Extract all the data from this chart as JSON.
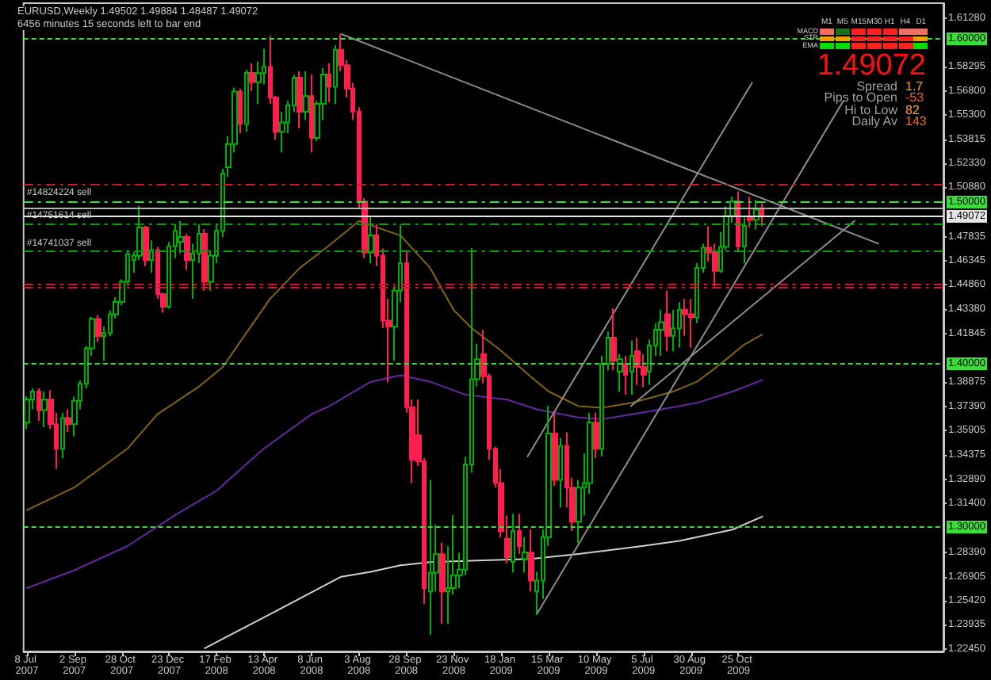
{
  "chart_data": {
    "type": "candlestick",
    "title": "EURUSD,Weekly 1.49502 1.49884 1.48487 1.49072",
    "subtitle": "6456 minutes 15 seconds left to bar end",
    "x": [
      "2007-07-08",
      "2007-07-15",
      "2007-07-22",
      "2007-07-29",
      "2007-08-05",
      "2007-08-12",
      "2007-08-19",
      "2007-08-26",
      "2007-09-02",
      "2007-09-09",
      "2007-09-16",
      "2007-09-23",
      "2007-09-30",
      "2007-10-07",
      "2007-10-14",
      "2007-10-21",
      "2007-10-28",
      "2007-11-04",
      "2007-11-11",
      "2007-11-18",
      "2007-11-25",
      "2007-12-02",
      "2007-12-09",
      "2007-12-16",
      "2007-12-23",
      "2007-12-30",
      "2008-01-06",
      "2008-01-13",
      "2008-01-20",
      "2008-01-27",
      "2008-02-03",
      "2008-02-10",
      "2008-02-17",
      "2008-02-24",
      "2008-03-02",
      "2008-03-09",
      "2008-03-16",
      "2008-03-23",
      "2008-03-30",
      "2008-04-06",
      "2008-04-13",
      "2008-04-20",
      "2008-04-27",
      "2008-05-04",
      "2008-05-11",
      "2008-05-18",
      "2008-05-25",
      "2008-06-01",
      "2008-06-08",
      "2008-06-15",
      "2008-06-22",
      "2008-06-29",
      "2008-07-06",
      "2008-07-13",
      "2008-07-20",
      "2008-07-27",
      "2008-08-03",
      "2008-08-10",
      "2008-08-17",
      "2008-08-24",
      "2008-08-31",
      "2008-09-07",
      "2008-09-14",
      "2008-09-21",
      "2008-09-28",
      "2008-10-05",
      "2008-10-12",
      "2008-10-19",
      "2008-10-26",
      "2008-11-02",
      "2008-11-09",
      "2008-11-16",
      "2008-11-23",
      "2008-11-30",
      "2008-12-07",
      "2008-12-14",
      "2008-12-21",
      "2008-12-28",
      "2009-01-04",
      "2009-01-11",
      "2009-01-18",
      "2009-01-25",
      "2009-02-01",
      "2009-02-08",
      "2009-02-15",
      "2009-02-22",
      "2009-03-01",
      "2009-03-08",
      "2009-03-15",
      "2009-03-22",
      "2009-03-29",
      "2009-04-05",
      "2009-04-12",
      "2009-04-19",
      "2009-04-26",
      "2009-05-03",
      "2009-05-10",
      "2009-05-17",
      "2009-05-24",
      "2009-05-31",
      "2009-06-07",
      "2009-06-14",
      "2009-06-21",
      "2009-06-28",
      "2009-07-05",
      "2009-07-12",
      "2009-07-19",
      "2009-07-26",
      "2009-08-02",
      "2009-08-09",
      "2009-08-16",
      "2009-08-23",
      "2009-08-30",
      "2009-09-06",
      "2009-09-13",
      "2009-09-20",
      "2009-09-27",
      "2009-10-04",
      "2009-10-11",
      "2009-10-18",
      "2009-10-25",
      "2009-11-01",
      "2009-11-08",
      "2009-11-15",
      "2009-11-22"
    ],
    "ohlc": [
      [
        1.3638,
        1.38,
        1.36,
        1.3781
      ],
      [
        1.3781,
        1.385,
        1.372,
        1.383
      ],
      [
        1.383,
        1.385,
        1.365,
        1.3715
      ],
      [
        1.3715,
        1.383,
        1.361,
        1.3781
      ],
      [
        1.3781,
        1.3838,
        1.36,
        1.3629
      ],
      [
        1.3629,
        1.37,
        1.3353,
        1.3477
      ],
      [
        1.3477,
        1.37,
        1.342,
        1.3667
      ],
      [
        1.3667,
        1.372,
        1.358,
        1.3629
      ],
      [
        1.3629,
        1.38,
        1.3553,
        1.3772
      ],
      [
        1.3772,
        1.39,
        1.372,
        1.3877
      ],
      [
        1.3877,
        1.411,
        1.385,
        1.4096
      ],
      [
        1.4096,
        1.429,
        1.405,
        1.4276
      ],
      [
        1.4276,
        1.43,
        1.4134,
        1.4171
      ],
      [
        1.4171,
        1.423,
        1.4019,
        1.419
      ],
      [
        1.419,
        1.433,
        1.417,
        1.4305
      ],
      [
        1.4305,
        1.441,
        1.428,
        1.4381
      ],
      [
        1.4381,
        1.452,
        1.436,
        1.4505
      ],
      [
        1.4505,
        1.47,
        1.448,
        1.4677
      ],
      [
        1.464,
        1.469,
        1.456,
        1.4667
      ],
      [
        1.4667,
        1.4972,
        1.464,
        1.4839
      ],
      [
        1.4839,
        1.485,
        1.46,
        1.4638
      ],
      [
        1.4638,
        1.476,
        1.456,
        1.47
      ],
      [
        1.47,
        1.472,
        1.44,
        1.4429
      ],
      [
        1.4429,
        1.444,
        1.4315,
        1.4352
      ],
      [
        1.4352,
        1.475,
        1.434,
        1.4724
      ],
      [
        1.4724,
        1.486,
        1.465,
        1.4819
      ],
      [
        1.475,
        1.488,
        1.468,
        1.4781
      ],
      [
        1.4781,
        1.48,
        1.458,
        1.464
      ],
      [
        1.464,
        1.474,
        1.44,
        1.468
      ],
      [
        1.468,
        1.486,
        1.462,
        1.48
      ],
      [
        1.48,
        1.483,
        1.445,
        1.4505
      ],
      [
        1.4505,
        1.47,
        1.445,
        1.4667
      ],
      [
        1.4667,
        1.486,
        1.462,
        1.4819
      ],
      [
        1.4819,
        1.52,
        1.478,
        1.5171
      ],
      [
        1.521,
        1.54,
        1.515,
        1.5353
      ],
      [
        1.5353,
        1.57,
        1.53,
        1.5676
      ],
      [
        1.5676,
        1.5695,
        1.542,
        1.5476
      ],
      [
        1.5476,
        1.581,
        1.5429,
        1.5791
      ],
      [
        1.5791,
        1.585,
        1.568,
        1.5734
      ],
      [
        1.5734,
        1.586,
        1.56,
        1.579
      ],
      [
        1.579,
        1.594,
        1.572,
        1.5829
      ],
      [
        1.5829,
        1.6019,
        1.56,
        1.5638
      ],
      [
        1.5638,
        1.565,
        1.538,
        1.5429
      ],
      [
        1.5429,
        1.555,
        1.53,
        1.5486
      ],
      [
        1.5486,
        1.562,
        1.542,
        1.5591
      ],
      [
        1.5591,
        1.578,
        1.555,
        1.5762
      ],
      [
        1.5762,
        1.58,
        1.545,
        1.5552
      ],
      [
        1.5552,
        1.58,
        1.55,
        1.5648
      ],
      [
        1.5648,
        1.5781,
        1.53,
        1.5391
      ],
      [
        1.5391,
        1.562,
        1.537,
        1.56
      ],
      [
        1.56,
        1.582,
        1.55,
        1.5781
      ],
      [
        1.5781,
        1.585,
        1.561,
        1.5705
      ],
      [
        1.5705,
        1.596,
        1.56,
        1.5933
      ],
      [
        1.5933,
        1.6029,
        1.58,
        1.5838
      ],
      [
        1.5838,
        1.587,
        1.564,
        1.5695
      ],
      [
        1.5695,
        1.573,
        1.55,
        1.5552
      ],
      [
        1.5552,
        1.558,
        1.496,
        1.5
      ],
      [
        1.5,
        1.502,
        1.465,
        1.4686
      ],
      [
        1.4686,
        1.4905,
        1.4619,
        1.4791
      ],
      [
        1.4791,
        1.486,
        1.46,
        1.4667
      ],
      [
        1.4667,
        1.471,
        1.422,
        1.4267
      ],
      [
        1.4267,
        1.44,
        1.3886,
        1.423
      ],
      [
        1.423,
        1.448,
        1.4019,
        1.445
      ],
      [
        1.445,
        1.4858,
        1.438,
        1.462
      ],
      [
        1.462,
        1.47,
        1.37,
        1.3733
      ],
      [
        1.3733,
        1.3781,
        1.3267,
        1.341
      ],
      [
        1.356,
        1.3781,
        1.337,
        1.34
      ],
      [
        1.34,
        1.342,
        1.2524,
        1.2619
      ],
      [
        1.26,
        1.3286,
        1.2334,
        1.2715
      ],
      [
        1.2715,
        1.301,
        1.26,
        1.2829
      ],
      [
        1.2829,
        1.29,
        1.24,
        1.26
      ],
      [
        1.26,
        1.2877,
        1.24,
        1.262
      ],
      [
        1.262,
        1.307,
        1.258,
        1.27
      ],
      [
        1.27,
        1.2838,
        1.262,
        1.2734
      ],
      [
        1.2734,
        1.3429,
        1.27,
        1.3381
      ],
      [
        1.3381,
        1.4714,
        1.333,
        1.3905
      ],
      [
        1.3905,
        1.4124,
        1.386,
        1.4029
      ],
      [
        1.406,
        1.421,
        1.388,
        1.3924
      ],
      [
        1.3924,
        1.394,
        1.341,
        1.3477
      ],
      [
        1.3477,
        1.349,
        1.3238,
        1.3267
      ],
      [
        1.3267,
        1.3353,
        1.2934,
        1.2972
      ],
      [
        1.2924,
        1.3067,
        1.277,
        1.281
      ],
      [
        1.2781,
        1.3077,
        1.2715,
        1.2972
      ],
      [
        1.2972,
        1.3077,
        1.283,
        1.2877
      ],
      [
        1.28,
        1.2934,
        1.2715,
        1.284
      ],
      [
        1.2838,
        1.2981,
        1.26,
        1.2667
      ],
      [
        1.26,
        1.272,
        1.2457,
        1.2667
      ],
      [
        1.2667,
        1.2981,
        1.2553,
        1.2934
      ],
      [
        1.2934,
        1.3743,
        1.288,
        1.3571
      ],
      [
        1.3571,
        1.3695,
        1.325,
        1.3286
      ],
      [
        1.3286,
        1.3543,
        1.3115,
        1.3496
      ],
      [
        1.3496,
        1.358,
        1.3115,
        1.3238
      ],
      [
        1.3238,
        1.33,
        1.2972,
        1.3029
      ],
      [
        1.3029,
        1.3286,
        1.29,
        1.3238
      ],
      [
        1.3238,
        1.3448,
        1.3067,
        1.3267
      ],
      [
        1.3267,
        1.37,
        1.32,
        1.3638
      ],
      [
        1.3638,
        1.37,
        1.342,
        1.3477
      ],
      [
        1.3477,
        1.405,
        1.343,
        1.4
      ],
      [
        1.4,
        1.42,
        1.396,
        1.4162
      ],
      [
        1.4162,
        1.4343,
        1.396,
        1.4019
      ],
      [
        1.3953,
        1.406,
        1.3829,
        1.4029
      ],
      [
        1.4,
        1.405,
        1.381,
        1.3933
      ],
      [
        1.3953,
        1.4143,
        1.381,
        1.4048
      ],
      [
        1.4077,
        1.416,
        1.387,
        1.3981
      ],
      [
        1.3981,
        1.406,
        1.3857,
        1.3933
      ],
      [
        1.3953,
        1.415,
        1.387,
        1.4114
      ],
      [
        1.4114,
        1.425,
        1.405,
        1.421
      ],
      [
        1.421,
        1.4334,
        1.405,
        1.4257
      ],
      [
        1.4305,
        1.445,
        1.4077,
        1.4172
      ],
      [
        1.4172,
        1.4334,
        1.4077,
        1.4219
      ],
      [
        1.4219,
        1.438,
        1.41,
        1.4334
      ],
      [
        1.4334,
        1.44,
        1.4172,
        1.4305
      ],
      [
        1.4305,
        1.44,
        1.41,
        1.4286
      ],
      [
        1.4286,
        1.462,
        1.425,
        1.4591
      ],
      [
        1.4591,
        1.474,
        1.456,
        1.4715
      ],
      [
        1.4715,
        1.4848,
        1.463,
        1.4686
      ],
      [
        1.4686,
        1.474,
        1.4476,
        1.4572
      ],
      [
        1.4572,
        1.481,
        1.456,
        1.472
      ],
      [
        1.472,
        1.497,
        1.47,
        1.491
      ],
      [
        1.491,
        1.503,
        1.487,
        1.5
      ],
      [
        1.5,
        1.5062,
        1.469,
        1.4724
      ],
      [
        1.4724,
        1.49,
        1.4619,
        1.4848
      ],
      [
        1.49,
        1.5029,
        1.484,
        1.4886
      ],
      [
        1.4886,
        1.501,
        1.4829,
        1.495
      ],
      [
        1.49502,
        1.49884,
        1.48487,
        1.49072
      ]
    ],
    "xlim": [
      "2007-07-04",
      "2010-06-24"
    ],
    "xticks": [
      {
        "value": "2007-07-08",
        "label": "8 Jul 2007"
      },
      {
        "value": "2007-09-02",
        "label": "2 Sep 2007"
      },
      {
        "value": "2007-10-28",
        "label": "28 Oct 2007"
      },
      {
        "value": "2007-12-23",
        "label": "23 Dec 2007"
      },
      {
        "value": "2008-02-17",
        "label": "17 Feb 2008"
      },
      {
        "value": "2008-04-13",
        "label": "13 Apr 2008"
      },
      {
        "value": "2008-06-08",
        "label": "8 Jun 2008"
      },
      {
        "value": "2008-08-03",
        "label": "3 Aug 2008"
      },
      {
        "value": "2008-09-28",
        "label": "28 Sep 2008"
      },
      {
        "value": "2008-11-23",
        "label": "23 Nov 2008"
      },
      {
        "value": "2009-01-18",
        "label": "18 Jan 2009"
      },
      {
        "value": "2009-03-15",
        "label": "15 Mar 2009"
      },
      {
        "value": "2009-05-10",
        "label": "10 May 2009"
      },
      {
        "value": "2009-07-05",
        "label": "5 Jul 2009"
      },
      {
        "value": "2009-08-30",
        "label": "30 Aug 2009"
      },
      {
        "value": "2009-10-25",
        "label": "25 Oct 2009"
      }
    ],
    "ylim": [
      1.223,
      1.622
    ],
    "yticks": [
      {
        "value": 1.2245,
        "label": "1.22450"
      },
      1.23935,
      {
        "value": 1.2542,
        "label": "1.25420"
      },
      1.26905,
      {
        "value": 1.2839,
        "label": "1.28390"
      },
      {
        "value": 1.314,
        "label": "1.31400"
      },
      {
        "value": 1.3289,
        "label": "1.32890"
      },
      1.34375,
      1.35905,
      {
        "value": 1.3739,
        "label": "1.37390"
      },
      1.38875,
      1.41845,
      {
        "value": 1.4338,
        "label": "1.43380"
      },
      {
        "value": 1.4486,
        "label": "1.44860"
      },
      1.46345,
      1.47835,
      {
        "value": 1.5088,
        "label": "1.50880"
      },
      {
        "value": 1.5233,
        "label": "1.52330"
      },
      1.53815,
      {
        "value": 1.553,
        "label": "1.55300"
      },
      {
        "value": 1.568,
        "label": "1.56800"
      },
      1.58295,
      {
        "value": 1.6128,
        "label": "1.61280"
      }
    ],
    "marker": "none",
    "series": [
      {
        "type": "line",
        "color": "#826414",
        "x": [
          "2007-07-08",
          "2007-09-02",
          "2007-11-04",
          "2007-12-09",
          "2008-01-27",
          "2008-02-24",
          "2008-03-23",
          "2008-04-20",
          "2008-05-25",
          "2008-06-29",
          "2008-08-03",
          "2008-08-24",
          "2008-09-21",
          "2008-10-26",
          "2008-11-23",
          "2008-12-14",
          "2009-01-18",
          "2009-02-22",
          "2009-03-15",
          "2009-04-19",
          "2009-05-17",
          "2009-06-21",
          "2009-07-12",
          "2009-08-09",
          "2009-09-06",
          "2009-10-04",
          "2009-11-01",
          "2009-11-22"
        ],
        "values": [
          1.31,
          1.324,
          1.348,
          1.369,
          1.386,
          1.398,
          1.419,
          1.44,
          1.459,
          1.473,
          1.488,
          1.484,
          1.479,
          1.459,
          1.433,
          1.422,
          1.408,
          1.392,
          1.383,
          1.374,
          1.373,
          1.376,
          1.379,
          1.383,
          1.389,
          1.4,
          1.412,
          1.418
        ]
      },
      {
        "type": "line",
        "color": "#6428a0",
        "x": [
          "2007-07-08",
          "2007-09-02",
          "2007-11-04",
          "2007-12-30",
          "2008-02-17",
          "2008-04-13",
          "2008-06-08",
          "2008-06-29",
          "2008-08-17",
          "2008-09-21",
          "2008-10-26",
          "2008-12-07",
          "2009-01-25",
          "2009-03-01",
          "2009-04-19",
          "2009-05-17",
          "2009-06-21",
          "2009-07-26",
          "2009-09-06",
          "2009-10-18",
          "2009-11-22"
        ],
        "values": [
          1.262,
          1.273,
          1.288,
          1.307,
          1.322,
          1.348,
          1.369,
          1.374,
          1.389,
          1.393,
          1.389,
          1.381,
          1.378,
          1.372,
          1.367,
          1.366,
          1.369,
          1.372,
          1.376,
          1.383,
          1.39
        ]
      },
      {
        "type": "line",
        "color": "#d0d0d0",
        "x": [
          "2008-02-03",
          "2008-04-13",
          "2008-07-13",
          "2008-08-17",
          "2008-09-21",
          "2008-10-26",
          "2008-12-21",
          "2009-02-22",
          "2009-04-19",
          "2009-07-05",
          "2009-08-16",
          "2009-10-18",
          "2009-11-22"
        ],
        "values": [
          1.225,
          1.244,
          1.269,
          1.272,
          1.276,
          1.278,
          1.279,
          1.28,
          1.283,
          1.288,
          1.291,
          1.298,
          1.306
        ]
      },
      {
        "type": "line",
        "color": "#8c8c8c",
        "x": [
          "2008-07-13",
          "2010-04-08"
        ],
        "values": [
          1.603,
          1.474
        ]
      },
      {
        "type": "line",
        "color": "#8c8c8c",
        "x": [
          "2009-02-18",
          "2009-11-10"
        ],
        "values": [
          1.343,
          1.573
        ]
      },
      {
        "type": "line",
        "color": "#8c8c8c",
        "x": [
          "2009-03-01",
          "2010-02-26"
        ],
        "values": [
          1.246,
          1.562
        ]
      },
      {
        "type": "line",
        "color": "#8c8c8c",
        "x": [
          "2009-06-20",
          "2010-03-11"
        ],
        "values": [
          1.374,
          1.488
        ]
      }
    ],
    "ref_lines": [
      {
        "axis": "y",
        "value": 1.6,
        "label": "1.60000",
        "color": "#3cdc3c",
        "line_style": "dotted"
      },
      {
        "axis": "y",
        "value": 1.51,
        "color": "#d01828",
        "line_style": "dashed"
      },
      {
        "axis": "y",
        "value": 1.5,
        "label": "1.50000",
        "color": "#3cdc3c",
        "line_style": "dashed"
      },
      {
        "axis": "y",
        "value": 1.496,
        "color": "#b4b4b4",
        "line_style": "solid"
      },
      {
        "axis": "y",
        "value": 1.49072,
        "label": "1.49072",
        "color": "#e6e6e6",
        "line_style": "solid"
      },
      {
        "axis": "y",
        "value": 1.486,
        "color": "#00a000",
        "line_style": "dashed"
      },
      {
        "axis": "y",
        "value": 1.469,
        "color": "#00a000",
        "line_style": "dashed"
      },
      {
        "axis": "y",
        "value": 1.449,
        "color": "#d01828",
        "line_style": "dashed"
      },
      {
        "axis": "y",
        "value": 1.447,
        "color": "#d01828",
        "line_style": "dashed"
      },
      {
        "axis": "y",
        "value": 1.4,
        "label": "1.40000",
        "color": "#3cdc3c",
        "line_style": "dotted"
      },
      {
        "axis": "y",
        "value": 1.3,
        "label": "1.30000",
        "color": "#3cdc3c",
        "line_style": "dotted"
      }
    ],
    "annotations": [
      "1.49072",
      "Spread",
      "1.7",
      "Pips to Open",
      "-53",
      "Hi to Low",
      "82",
      "Daily Av",
      "143",
      "M1",
      "M5",
      "M15",
      "M30",
      "H1",
      "H4",
      "D1",
      "MACD",
      "STR",
      "EMA",
      {
        "text": "#14824224 sell",
        "x": "2007-07-04",
        "y": 1.5
      },
      {
        "text": "#14751614 sell",
        "x": "2007-07-04",
        "y": 1.486
      },
      {
        "text": "#14741037 sell",
        "x": "2007-07-04",
        "y": 1.469
      }
    ]
  }
}
